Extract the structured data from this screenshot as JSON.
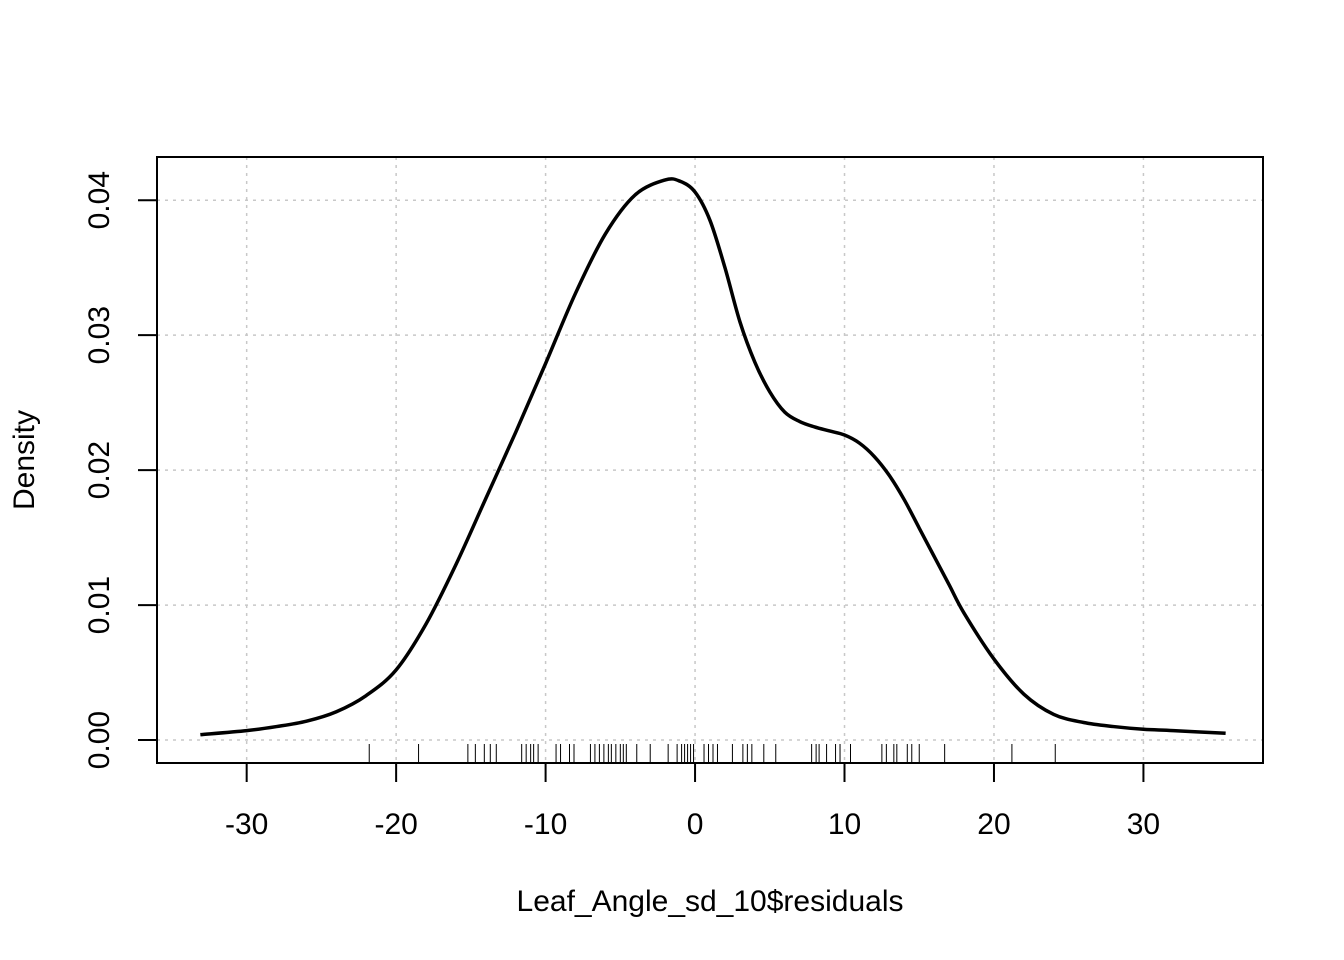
{
  "chart_data": {
    "type": "line",
    "title": "",
    "xlabel": "Leaf_Angle_sd_10$residuals",
    "ylabel": "Density",
    "xlim": [
      -36,
      38
    ],
    "ylim": [
      -0.0017,
      0.0432
    ],
    "xticks": [
      -30,
      -20,
      -10,
      0,
      10,
      20,
      30
    ],
    "xtick_labels": [
      "-30",
      "-20",
      "-10",
      "0",
      "10",
      "20",
      "30"
    ],
    "yticks": [
      0.0,
      0.01,
      0.02,
      0.03,
      0.04
    ],
    "ytick_labels": [
      "0.00",
      "0.01",
      "0.02",
      "0.03",
      "0.04"
    ],
    "grid": true,
    "line_color": "#000000",
    "grid_color": "#c8c8c8",
    "series": [
      {
        "x": [
          -33.1,
          -30,
          -28,
          -26,
          -24,
          -22,
          -20,
          -18,
          -16,
          -14,
          -12,
          -10,
          -8,
          -6,
          -4,
          -2,
          -1,
          0,
          1,
          2,
          3,
          4,
          5,
          6,
          7,
          8,
          9,
          10,
          11,
          12,
          13,
          14,
          15,
          16,
          17,
          18,
          20,
          22,
          24,
          26,
          28,
          30,
          32,
          35.5
        ],
        "y": [
          0.0004,
          0.0007,
          0.001,
          0.0014,
          0.0021,
          0.0033,
          0.0052,
          0.0086,
          0.013,
          0.0179,
          0.0228,
          0.0279,
          0.0331,
          0.0375,
          0.0404,
          0.0415,
          0.0414,
          0.0406,
          0.0385,
          0.035,
          0.031,
          0.028,
          0.0258,
          0.0243,
          0.0236,
          0.0232,
          0.0229,
          0.0226,
          0.022,
          0.021,
          0.0196,
          0.0178,
          0.0157,
          0.0136,
          0.0115,
          0.0094,
          0.006,
          0.0034,
          0.0019,
          0.0013,
          0.001,
          0.0008,
          0.0007,
          0.0005
        ]
      }
    ],
    "rug": [
      -21.8,
      -18.5,
      -15.2,
      -14.7,
      -14.1,
      -13.7,
      -13.3,
      -11.6,
      -11.3,
      -11.0,
      -10.8,
      -10.5,
      -9.3,
      -9.0,
      -8.4,
      -8.1,
      -7.0,
      -6.7,
      -6.4,
      -6.1,
      -5.8,
      -5.6,
      -5.3,
      -5.0,
      -4.8,
      -4.6,
      -3.9,
      -3.0,
      -1.8,
      -1.2,
      -0.9,
      -0.7,
      -0.5,
      -0.3,
      -0.1,
      0.6,
      0.9,
      1.2,
      1.5,
      2.5,
      3.2,
      3.5,
      3.8,
      4.6,
      5.4,
      7.8,
      8.1,
      8.3,
      8.8,
      9.4,
      9.7,
      10.4,
      12.5,
      12.8,
      13.3,
      13.5,
      14.2,
      14.5,
      15.0,
      16.7,
      21.2,
      24.1
    ]
  }
}
